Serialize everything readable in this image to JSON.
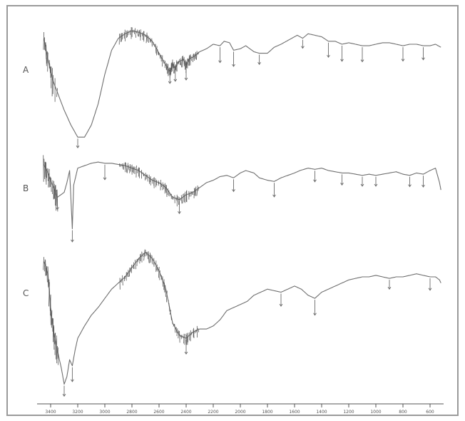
{
  "chart_data": {
    "type": "line",
    "title": "",
    "xlabel": "",
    "ylabel": "",
    "xlim": [
      500,
      3500
    ],
    "x_ticks": [
      "3400",
      "3200",
      "3000",
      "2800",
      "2600",
      "2400",
      "2200",
      "2000",
      "1800",
      "1600",
      "1400",
      "1200",
      "1000",
      "800",
      "600",
      "400"
    ],
    "grid": false,
    "legend": "none",
    "series": [
      {
        "name": "A",
        "x": [
          3450,
          3420,
          3380,
          3300,
          3250,
          3200,
          3150,
          3100,
          3050,
          3000,
          2950,
          2900,
          2850,
          2800,
          2750,
          2700,
          2650,
          2600,
          2550,
          2520,
          2500,
          2480,
          2460,
          2420,
          2400,
          2380,
          2340,
          2300,
          2250,
          2200,
          2150,
          2120,
          2080,
          2050,
          2000,
          1960,
          1900,
          1860,
          1800,
          1750,
          1700,
          1660,
          1620,
          1580,
          1540,
          1500,
          1450,
          1400,
          1350,
          1300,
          1250,
          1200,
          1150,
          1100,
          1050,
          1000,
          950,
          900,
          850,
          800,
          750,
          700,
          650,
          600,
          560,
          520
        ],
        "values": [
          84,
          70,
          55,
          36,
          26,
          18,
          18,
          26,
          40,
          60,
          76,
          84,
          87,
          89,
          88,
          86,
          82,
          74,
          66,
          62,
          67,
          64,
          68,
          70,
          66,
          70,
          72,
          75,
          77,
          80,
          79,
          82,
          81,
          76,
          77,
          79,
          75,
          74,
          74,
          78,
          80,
          82,
          84,
          86,
          84,
          87,
          86,
          85,
          82,
          82,
          80,
          81,
          80,
          79,
          79,
          80,
          81,
          81,
          80,
          79,
          80,
          80,
          79,
          79,
          80,
          78
        ]
      },
      {
        "name": "B",
        "x": [
          3450,
          3420,
          3380,
          3350,
          3300,
          3280,
          3260,
          3240,
          3230,
          3200,
          3150,
          3100,
          3050,
          3000,
          2950,
          2900,
          2850,
          2800,
          2750,
          2700,
          2650,
          2600,
          2550,
          2500,
          2450,
          2400,
          2350,
          2300,
          2250,
          2200,
          2150,
          2100,
          2050,
          2000,
          1960,
          1900,
          1860,
          1800,
          1750,
          1700,
          1650,
          1600,
          1560,
          1500,
          1450,
          1400,
          1350,
          1300,
          1250,
          1200,
          1150,
          1100,
          1050,
          1000,
          950,
          900,
          850,
          800,
          750,
          700,
          650,
          600,
          560,
          530,
          520
        ],
        "values": [
          85,
          78,
          66,
          58,
          62,
          70,
          80,
          32,
          68,
          82,
          84,
          86,
          87,
          86,
          86,
          85,
          84,
          82,
          80,
          76,
          72,
          70,
          66,
          58,
          56,
          60,
          62,
          66,
          70,
          72,
          75,
          76,
          74,
          78,
          80,
          78,
          74,
          72,
          71,
          74,
          76,
          78,
          80,
          82,
          81,
          82,
          80,
          79,
          78,
          78,
          77,
          76,
          77,
          76,
          77,
          78,
          79,
          77,
          76,
          78,
          77,
          80,
          82,
          70,
          64
        ]
      },
      {
        "name": "C",
        "x": [
          3450,
          3420,
          3400,
          3380,
          3350,
          3320,
          3300,
          3280,
          3260,
          3240,
          3220,
          3200,
          3150,
          3100,
          3050,
          3000,
          2950,
          2900,
          2850,
          2800,
          2750,
          2700,
          2650,
          2600,
          2550,
          2500,
          2450,
          2400,
          2350,
          2300,
          2250,
          2200,
          2150,
          2100,
          2050,
          2000,
          1950,
          1900,
          1850,
          1800,
          1750,
          1700,
          1650,
          1600,
          1550,
          1500,
          1450,
          1400,
          1350,
          1300,
          1250,
          1200,
          1150,
          1100,
          1050,
          1000,
          950,
          900,
          850,
          800,
          750,
          700,
          650,
          600,
          560,
          530,
          520
        ],
        "values": [
          90,
          82,
          60,
          45,
          32,
          20,
          10,
          15,
          26,
          22,
          32,
          40,
          48,
          55,
          60,
          66,
          72,
          76,
          80,
          86,
          92,
          96,
          92,
          84,
          72,
          50,
          42,
          40,
          44,
          46,
          46,
          48,
          52,
          58,
          60,
          62,
          64,
          68,
          70,
          72,
          71,
          70,
          72,
          74,
          72,
          68,
          66,
          70,
          72,
          74,
          76,
          78,
          79,
          80,
          80,
          81,
          80,
          79,
          80,
          80,
          81,
          82,
          81,
          80,
          80,
          78,
          76
        ]
      }
    ]
  }
}
